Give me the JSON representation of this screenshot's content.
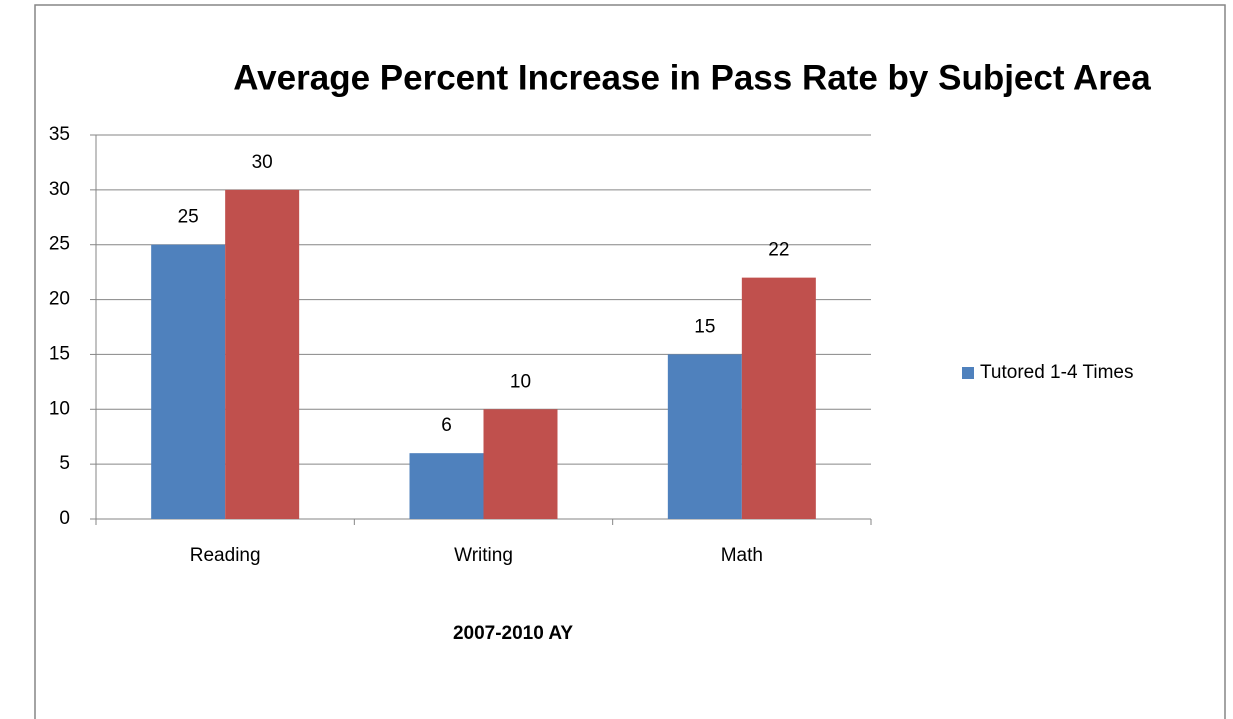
{
  "chart_data": {
    "type": "bar",
    "title": "Average Percent Increase in Pass Rate by Subject Area",
    "x_label": "2007-2010 AY",
    "categories": [
      "Reading",
      "Writing",
      "Math"
    ],
    "series": [
      {
        "name": "Tutored 1-4 Times",
        "color": "#4f81bd",
        "values": [
          25,
          6,
          15
        ]
      },
      {
        "color": "#c0504d",
        "values": [
          30,
          10,
          22
        ]
      }
    ],
    "ylim": [
      0,
      35
    ],
    "yticks": [
      0,
      5,
      10,
      15,
      20,
      25,
      30,
      35
    ],
    "grid": true,
    "legend": "right"
  }
}
